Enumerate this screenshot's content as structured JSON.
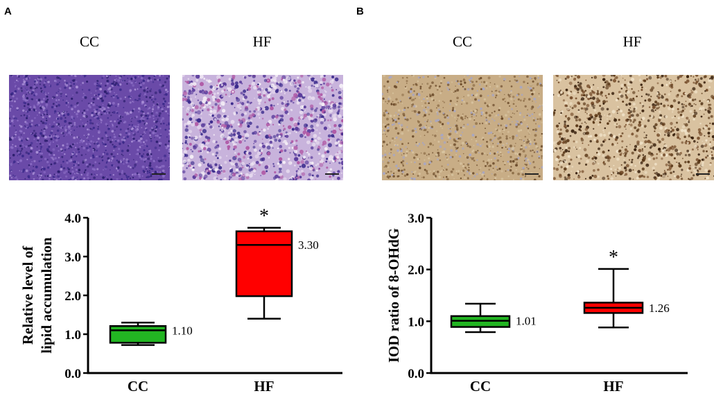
{
  "panel_a": {
    "letter": "A",
    "micrographs": [
      {
        "label": "CC"
      },
      {
        "label": "HF"
      }
    ]
  },
  "panel_b": {
    "letter": "B",
    "micrographs": [
      {
        "label": "CC"
      },
      {
        "label": "HF"
      }
    ]
  },
  "colors": {
    "cc_box": "#22b522",
    "hf_box": "#ff0000",
    "he_stain": "#7b4fb0",
    "ihc_stain": "#b9966a"
  },
  "chart_data": [
    {
      "type": "box",
      "panel": "A",
      "title": "",
      "xlabel": "",
      "ylabel": "Relative level of lipid accumulation",
      "ylabel_lines": [
        "Relative level of",
        "lipid accumulation"
      ],
      "ylim": [
        0,
        4
      ],
      "yticks": [
        "0.0",
        "1.0",
        "2.0",
        "3.0",
        "4.0"
      ],
      "yticks_values": [
        0,
        1,
        2,
        3,
        4
      ],
      "categories": [
        "CC",
        "HF"
      ],
      "boxes": [
        {
          "category": "CC",
          "min": 0.72,
          "q1": 0.78,
          "median": 1.1,
          "q3": 1.21,
          "max": 1.3,
          "label": "1.10",
          "significance": ""
        },
        {
          "category": "HF",
          "min": 1.4,
          "q1": 1.98,
          "median": 3.3,
          "q3": 3.65,
          "max": 3.74,
          "label": "3.30",
          "significance": "*"
        }
      ]
    },
    {
      "type": "box",
      "panel": "B",
      "title": "",
      "xlabel": "",
      "ylabel": "IOD ratio of 8-OHdG",
      "ylabel_lines": [
        "IOD ratio of 8-OHdG"
      ],
      "ylim": [
        0,
        3
      ],
      "yticks": [
        "0.0",
        "1.0",
        "2.0",
        "3.0"
      ],
      "yticks_values": [
        0,
        1,
        2,
        3
      ],
      "categories": [
        "CC",
        "HF"
      ],
      "boxes": [
        {
          "category": "CC",
          "min": 0.79,
          "q1": 0.89,
          "median": 1.01,
          "q3": 1.1,
          "max": 1.34,
          "label": "1.01",
          "significance": ""
        },
        {
          "category": "HF",
          "min": 0.88,
          "q1": 1.16,
          "median": 1.26,
          "q3": 1.36,
          "max": 2.01,
          "label": "1.26",
          "significance": "*"
        }
      ]
    }
  ]
}
